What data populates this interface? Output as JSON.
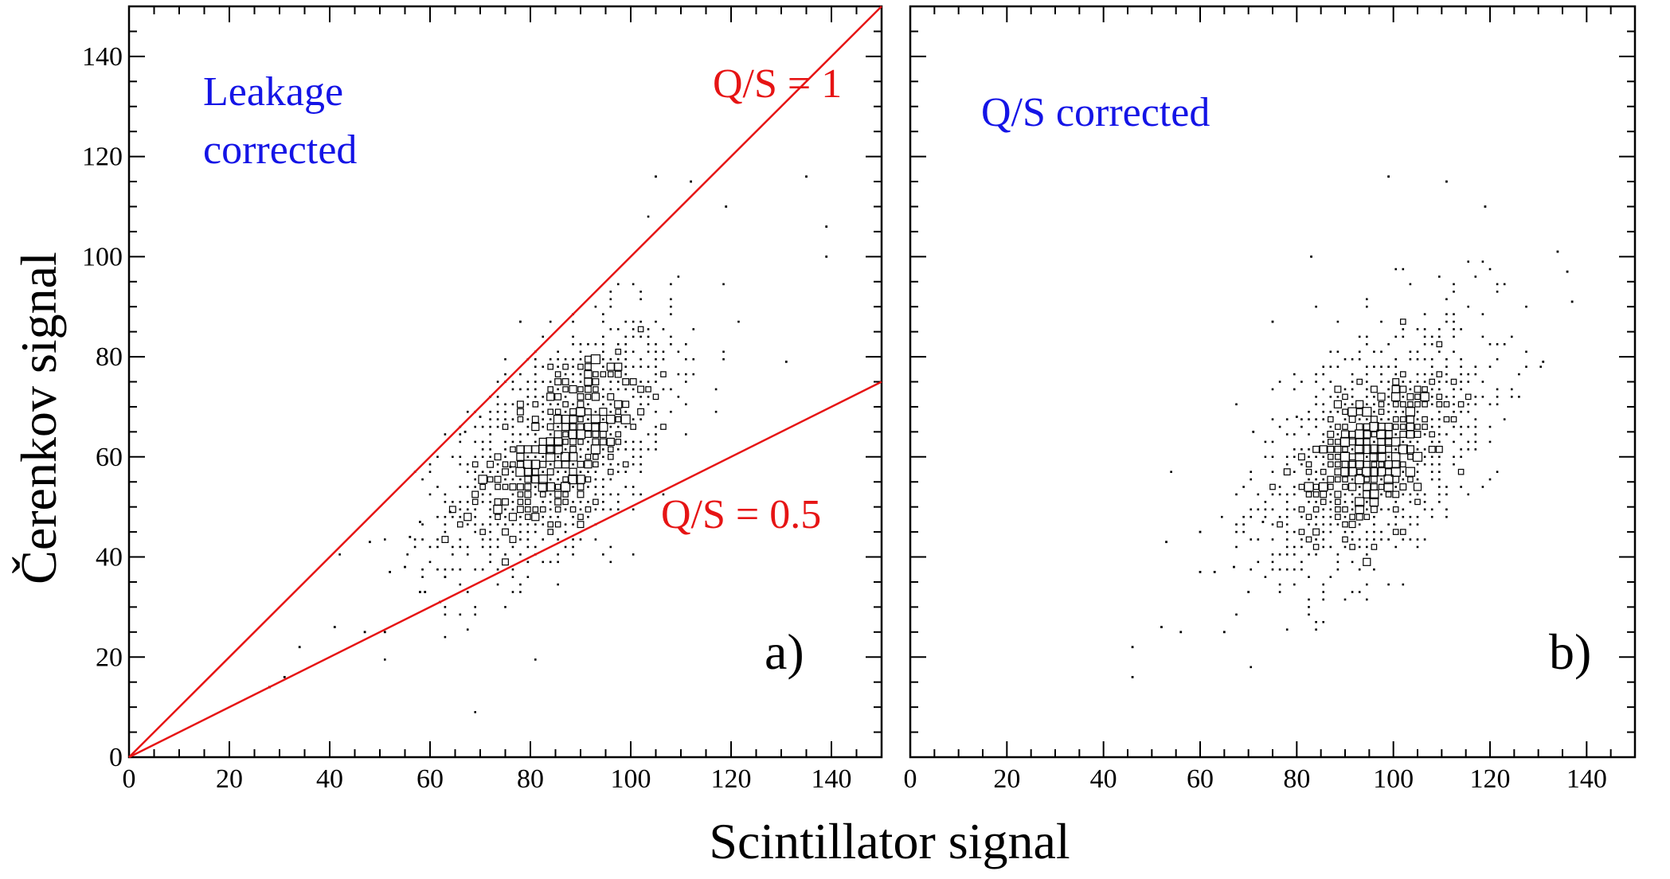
{
  "figure": {
    "xlabel": "Scintillator signal",
    "ylabel": "Čerenkov signal"
  },
  "chart_data": [
    {
      "type": "scatter",
      "panel": "a)",
      "xlim": [
        0,
        150
      ],
      "ylim": [
        0,
        150
      ],
      "x_ticks": [
        "0",
        "20",
        "40",
        "60",
        "80",
        "100",
        "120",
        "140"
      ],
      "y_ticks": [
        "0",
        "20",
        "40",
        "60",
        "80",
        "100",
        "120",
        "140"
      ],
      "annotations": [
        {
          "text": "Leakage",
          "color": "#1414e6"
        },
        {
          "text": "corrected",
          "color": "#1414e6"
        },
        {
          "text": "Q/S = 1",
          "color": "#e61414"
        },
        {
          "text": "Q/S = 0.5",
          "color": "#e61414"
        }
      ],
      "lines": [
        {
          "name": "Q/S = 1",
          "slope": 1,
          "color": "#e61414"
        },
        {
          "name": "Q/S = 0.5",
          "slope": 0.5,
          "color": "#e61414"
        }
      ],
      "cluster": {
        "x_center": 86,
        "y_center": 62,
        "sx": 11,
        "sy": 12,
        "rho": 0.55,
        "n_points": 1400
      },
      "points": [
        [
          28,
          14
        ],
        [
          31,
          16
        ],
        [
          34,
          22
        ],
        [
          41,
          26
        ],
        [
          47,
          25
        ],
        [
          51,
          25
        ],
        [
          48,
          43
        ],
        [
          52,
          37
        ],
        [
          55,
          38
        ],
        [
          56,
          44
        ],
        [
          58,
          47
        ],
        [
          58,
          33
        ],
        [
          59,
          33
        ],
        [
          62,
          31
        ],
        [
          63,
          36
        ],
        [
          64,
          49
        ],
        [
          67,
          65
        ],
        [
          70,
          68
        ],
        [
          76,
          58
        ],
        [
          78,
          87
        ],
        [
          105,
          116
        ],
        [
          112,
          115
        ],
        [
          119,
          110
        ],
        [
          131,
          79
        ],
        [
          135,
          116
        ],
        [
          139,
          106
        ],
        [
          139,
          100
        ]
      ]
    },
    {
      "type": "scatter",
      "panel": "b)",
      "xlim": [
        0,
        150
      ],
      "ylim": [
        0,
        150
      ],
      "x_ticks": [
        "0",
        "20",
        "40",
        "60",
        "80",
        "100",
        "120",
        "140"
      ],
      "y_ticks": [],
      "annotations": [
        {
          "text": "Q/S corrected",
          "color": "#1414e6"
        }
      ],
      "cluster": {
        "x_center": 96,
        "y_center": 61,
        "sx": 11,
        "sy": 12,
        "rho": 0.5,
        "n_points": 1400
      },
      "points": [
        [
          46,
          16
        ],
        [
          46,
          22
        ],
        [
          52,
          26
        ],
        [
          53,
          43
        ],
        [
          56,
          25
        ],
        [
          60,
          37
        ],
        [
          60,
          45
        ],
        [
          63,
          37
        ],
        [
          65,
          25
        ],
        [
          67,
          38
        ],
        [
          70,
          33
        ],
        [
          71,
          65
        ],
        [
          73,
          47
        ],
        [
          75,
          87
        ],
        [
          80,
          68
        ],
        [
          83,
          100
        ],
        [
          99,
          116
        ],
        [
          111,
          115
        ],
        [
          119,
          110
        ],
        [
          131,
          79
        ],
        [
          134,
          101
        ],
        [
          136,
          97
        ],
        [
          137,
          91
        ]
      ]
    }
  ]
}
